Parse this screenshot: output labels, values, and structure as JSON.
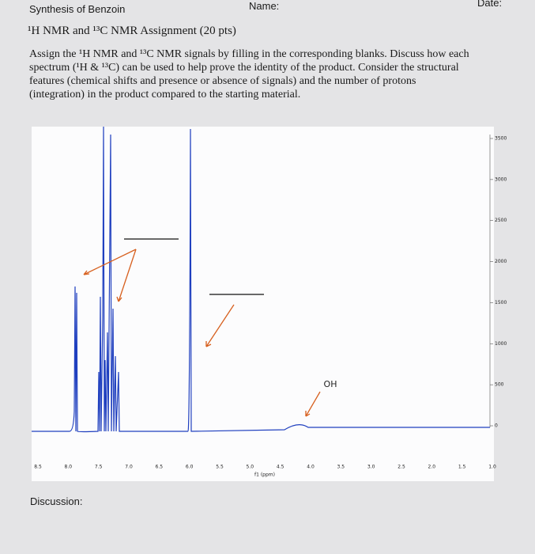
{
  "header": {
    "course": "Synthesis of Benzoin",
    "name_label": "Name:",
    "date_label": "Date:",
    "assignment": "¹H NMR and ¹³C NMR Assignment (20 pts)"
  },
  "instructions": {
    "lines": [
      "Assign the ¹H NMR and ¹³C NMR signals by filling in the corresponding blanks.  Discuss how each",
      "spectrum (¹H & ¹³C) can be used to help prove the identity of the product.  Consider the structural",
      "features (chemical shifts and presence or absence of signals) and the number of protons",
      "(integration) in the product compared to the starting material."
    ]
  },
  "spectrum": {
    "y_axis_labels": [
      "3500",
      "3000",
      "2500",
      "2000",
      "1500",
      "1000",
      "500",
      "0"
    ],
    "x_axis_labels": [
      "8.5",
      "8.0",
      "7.5",
      "7.0",
      "6.5",
      "6.0",
      "5.5",
      "5.0",
      "4.5",
      "4.0",
      "3.5",
      "3.0",
      "2.5",
      "2.0",
      "1.5",
      "1.0"
    ],
    "x_axis_title": "f1 (ppm)",
    "peak_label": "OH"
  },
  "discussion_label": "Discussion:"
}
